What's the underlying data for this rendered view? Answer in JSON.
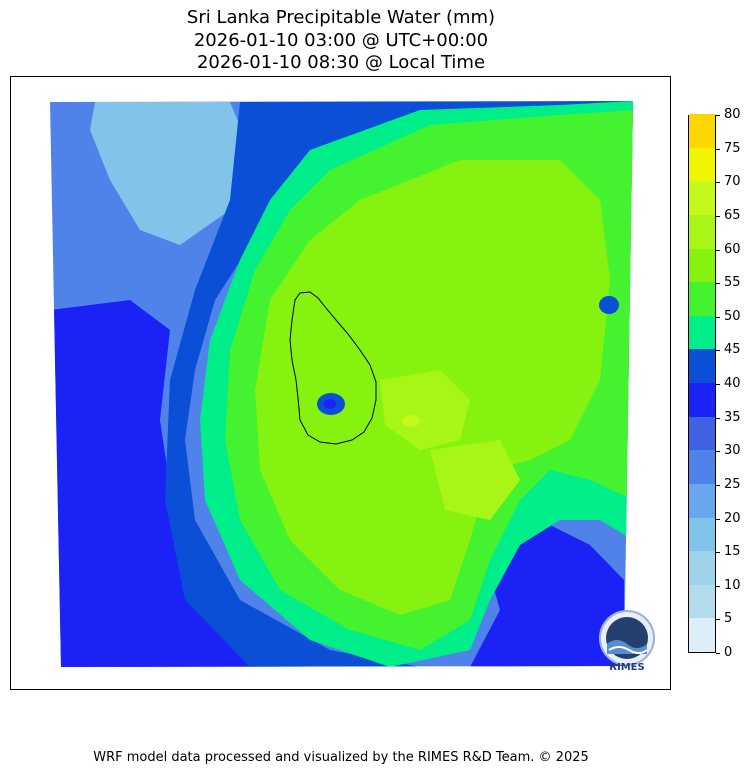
{
  "title": {
    "line1": "Sri Lanka Precipitable Water (mm)",
    "line2": "2026-01-10 03:00 @ UTC+00:00",
    "line3": "2026-01-10 08:30 @ Local Time"
  },
  "colorbar": {
    "ticks": [
      "0",
      "5",
      "10",
      "15",
      "20",
      "25",
      "30",
      "35",
      "40",
      "45",
      "50",
      "55",
      "60",
      "65",
      "70",
      "75",
      "80"
    ],
    "colors": [
      "#deeef8",
      "#b2dceb",
      "#9fd3ea",
      "#82c3ea",
      "#6aa6ee",
      "#5083ea",
      "#3f62e3",
      "#1a22f5",
      "#0a4fd6",
      "#00ee8a",
      "#44f230",
      "#86f210",
      "#a8f518",
      "#c5f91c",
      "#f0f500",
      "#ffd700"
    ]
  },
  "map": {
    "colors": {
      "bg": "#5083ea",
      "pale": "#82c3ea",
      "deep": "#1a22f5",
      "dark": "#0a4fd6",
      "teal": "#00ee8a",
      "green": "#44f230",
      "lime": "#86f210",
      "yellowgreen": "#a8f518",
      "yellow": "#c5f91c"
    }
  },
  "logo": {
    "text": "RIMES",
    "icon": "rimes-logo-icon"
  },
  "footer": "WRF model data processed and visualized by the RIMES R&D Team. © 2025"
}
